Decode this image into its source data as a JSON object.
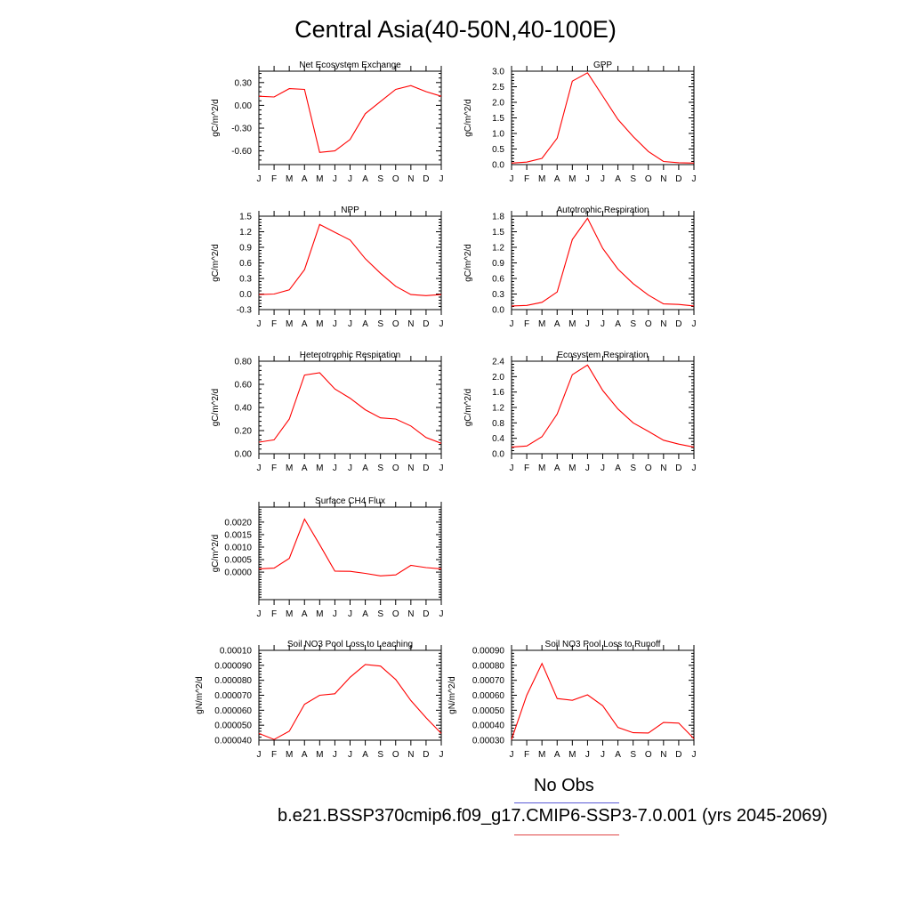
{
  "page_title": "Central Asia(40-50N,40-100E)",
  "months": [
    "J",
    "F",
    "M",
    "A",
    "M",
    "J",
    "J",
    "A",
    "S",
    "O",
    "N",
    "D",
    "J"
  ],
  "colors": {
    "model": "#ff0000",
    "obs_legend": "#5b5bd6",
    "case_legend": "#e04545"
  },
  "legend": {
    "obs_label": "No Obs",
    "case_label": "b.e21.BSSP370cmip6.f09_g17.CMIP6-SSP3-7.0.001 (yrs 2045-2069)"
  },
  "chart_data": [
    {
      "type": "line",
      "title": "Net Ecosystem Exchange",
      "ylabel": "gC/m^2/d",
      "ylim": [
        -0.78,
        0.45
      ],
      "ticks": [
        -0.6,
        -0.3,
        0.0,
        0.3
      ],
      "tick_labels": [
        "-0.60",
        "-0.30",
        "0.00",
        "0.30"
      ],
      "x": [
        "J",
        "F",
        "M",
        "A",
        "M",
        "J",
        "J",
        "A",
        "S",
        "O",
        "N",
        "D",
        "J"
      ],
      "values": [
        0.12,
        0.11,
        0.22,
        0.21,
        -0.62,
        -0.6,
        -0.45,
        -0.11,
        0.05,
        0.21,
        0.26,
        0.18,
        0.12
      ]
    },
    {
      "type": "line",
      "title": "GPP",
      "ylabel": "gC/m^2/d",
      "ylim": [
        0.0,
        3.0
      ],
      "ticks": [
        0.0,
        0.5,
        1.0,
        1.5,
        2.0,
        2.5,
        3.0
      ],
      "tick_labels": [
        "0.0",
        "0.5",
        "1.0",
        "1.5",
        "2.0",
        "2.5",
        "3.0"
      ],
      "x": [
        "J",
        "F",
        "M",
        "A",
        "M",
        "J",
        "J",
        "A",
        "S",
        "O",
        "N",
        "D",
        "J"
      ],
      "values": [
        0.05,
        0.08,
        0.2,
        0.85,
        2.68,
        2.95,
        2.2,
        1.45,
        0.9,
        0.42,
        0.1,
        0.06,
        0.05
      ]
    },
    {
      "type": "line",
      "title": "NPP",
      "ylabel": "gC/m^2/d",
      "ylim": [
        -0.3,
        1.5
      ],
      "ticks": [
        -0.3,
        0.0,
        0.3,
        0.6,
        0.9,
        1.2,
        1.5
      ],
      "tick_labels": [
        "-0.3",
        "0.0",
        "0.3",
        "0.6",
        "0.9",
        "1.2",
        "1.5"
      ],
      "x": [
        "J",
        "F",
        "M",
        "A",
        "M",
        "J",
        "J",
        "A",
        "S",
        "O",
        "N",
        "D",
        "J"
      ],
      "values": [
        -0.01,
        0.0,
        0.08,
        0.47,
        1.34,
        1.19,
        1.04,
        0.68,
        0.4,
        0.15,
        -0.01,
        -0.03,
        -0.01
      ]
    },
    {
      "type": "line",
      "title": "Autotrophic Respiration",
      "ylabel": "gC/m^2/d",
      "ylim": [
        0.0,
        1.8
      ],
      "ticks": [
        0.0,
        0.3,
        0.6,
        0.9,
        1.2,
        1.5,
        1.8
      ],
      "tick_labels": [
        "0.0",
        "0.3",
        "0.6",
        "0.9",
        "1.2",
        "1.5",
        "1.8"
      ],
      "x": [
        "J",
        "F",
        "M",
        "A",
        "M",
        "J",
        "J",
        "A",
        "S",
        "O",
        "N",
        "D",
        "J"
      ],
      "values": [
        0.07,
        0.08,
        0.14,
        0.34,
        1.35,
        1.76,
        1.18,
        0.78,
        0.5,
        0.28,
        0.11,
        0.1,
        0.07
      ]
    },
    {
      "type": "line",
      "title": "Heterotrophic Respiration",
      "ylabel": "gC/m^2/d",
      "ylim": [
        0.0,
        0.8
      ],
      "ticks": [
        0.0,
        0.2,
        0.4,
        0.6,
        0.8
      ],
      "tick_labels": [
        "0.00",
        "0.20",
        "0.40",
        "0.60",
        "0.80"
      ],
      "x": [
        "J",
        "F",
        "M",
        "A",
        "M",
        "J",
        "J",
        "A",
        "S",
        "O",
        "N",
        "D",
        "J"
      ],
      "values": [
        0.1,
        0.12,
        0.3,
        0.68,
        0.7,
        0.56,
        0.48,
        0.38,
        0.31,
        0.3,
        0.24,
        0.14,
        0.09
      ]
    },
    {
      "type": "line",
      "title": "Ecosystem Respiration",
      "ylabel": "gC/m^2/d",
      "ylim": [
        0.0,
        2.4
      ],
      "ticks": [
        0.0,
        0.4,
        0.8,
        1.2,
        1.6,
        2.0,
        2.4
      ],
      "tick_labels": [
        "0.0",
        "0.4",
        "0.8",
        "1.2",
        "1.6",
        "2.0",
        "2.4"
      ],
      "x": [
        "J",
        "F",
        "M",
        "A",
        "M",
        "J",
        "J",
        "A",
        "S",
        "O",
        "N",
        "D",
        "J"
      ],
      "values": [
        0.17,
        0.2,
        0.44,
        1.03,
        2.05,
        2.3,
        1.64,
        1.16,
        0.8,
        0.58,
        0.35,
        0.25,
        0.17
      ]
    },
    {
      "type": "line",
      "title": "Surface CH4 Flux",
      "ylabel": "gC/m^2/d",
      "ylim": [
        -0.0011,
        0.0026
      ],
      "ticks": [
        0.0,
        0.0005,
        0.001,
        0.0015,
        0.002
      ],
      "tick_labels": [
        "0.0000",
        "0.0005",
        "0.0010",
        "0.0015",
        "0.0020"
      ],
      "x": [
        "J",
        "F",
        "M",
        "A",
        "M",
        "J",
        "J",
        "A",
        "S",
        "O",
        "N",
        "D",
        "J"
      ],
      "values": [
        0.00013,
        0.00016,
        0.00055,
        0.00212,
        0.0011,
        4e-05,
        3e-05,
        -5e-05,
        -0.00015,
        -0.00011,
        0.00027,
        0.00018,
        0.00013
      ]
    },
    {
      "type": "line",
      "title": "Soil NO3 Pool Loss to Leaching",
      "ylabel": "gN/m^2/d",
      "ylim": [
        4e-05,
        0.0001
      ],
      "ticks": [
        4e-05,
        5e-05,
        6e-05,
        7e-05,
        8e-05,
        9e-05,
        0.0001
      ],
      "tick_labels": [
        "0.000040",
        "0.000050",
        "0.000060",
        "0.000070",
        "0.000080",
        "0.000090",
        "0.00010"
      ],
      "x": [
        "J",
        "F",
        "M",
        "A",
        "M",
        "J",
        "J",
        "A",
        "S",
        "O",
        "N",
        "D",
        "J"
      ],
      "values": [
        4.45e-05,
        4.05e-05,
        4.6e-05,
        6.4e-05,
        7e-05,
        7.1e-05,
        8.2e-05,
        9.05e-05,
        8.95e-05,
        8.05e-05,
        6.65e-05,
        5.5e-05,
        4.45e-05
      ]
    },
    {
      "type": "line",
      "title": "Soil NO3 Pool Loss to Runoff",
      "ylabel": "gN/m^2/d",
      "ylim": [
        0.0003,
        0.0009
      ],
      "ticks": [
        0.0003,
        0.0004,
        0.0005,
        0.0006,
        0.0007,
        0.0008,
        0.0009
      ],
      "tick_labels": [
        "0.00030",
        "0.00040",
        "0.00050",
        "0.00060",
        "0.00070",
        "0.00080",
        "0.00090"
      ],
      "x": [
        "J",
        "F",
        "M",
        "A",
        "M",
        "J",
        "J",
        "A",
        "S",
        "O",
        "N",
        "D",
        "J"
      ],
      "values": [
        0.000305,
        0.0006,
        0.000812,
        0.000578,
        0.000566,
        0.000603,
        0.00053,
        0.000385,
        0.00035,
        0.000348,
        0.000418,
        0.000414,
        0.00031
      ]
    }
  ]
}
